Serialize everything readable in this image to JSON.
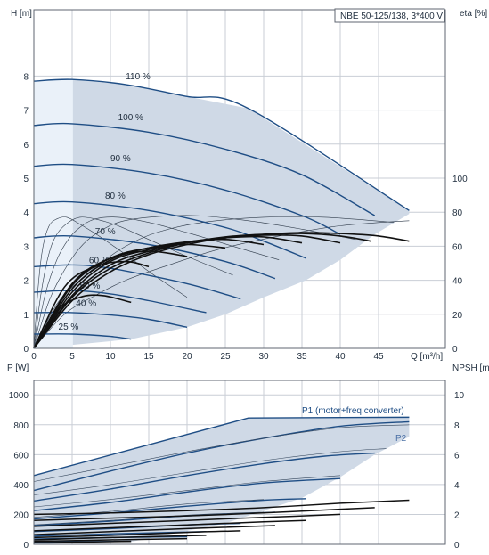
{
  "pump_label": "NBE 50-125/138, 3*400 V",
  "p1_label": "P1 (motor+freq.converter)",
  "p2_label": "P2",
  "chart_data": [
    {
      "type": "line",
      "title": "",
      "xlabel": "Q [m³/h]",
      "ylabel": "H\n[m]",
      "ylabel_right": "eta\n[%]",
      "xlim": [
        0,
        50
      ],
      "ylim": [
        0,
        9
      ],
      "ylim_right": [
        0,
        180
      ],
      "x_ticks": [
        "0",
        "5",
        "10",
        "15",
        "20",
        "25",
        "30",
        "35",
        "40",
        "45"
      ],
      "y_ticks": [
        "0",
        "1",
        "2",
        "3",
        "4",
        "5",
        "6",
        "7",
        "8"
      ],
      "y_right_ticks": [
        "0",
        "20",
        "40",
        "60",
        "80",
        "100"
      ],
      "grid": true,
      "series": [
        {
          "name": "110 %",
          "x": [
            0,
            5,
            12,
            20,
            28,
            49
          ],
          "y": [
            7.85,
            7.9,
            7.75,
            7.4,
            7.05,
            4.05
          ]
        },
        {
          "name": "100 %",
          "x": [
            0,
            5,
            15,
            25,
            35,
            44.5
          ],
          "y": [
            6.55,
            6.6,
            6.35,
            5.85,
            5.1,
            3.9
          ]
        },
        {
          "name": "90 %",
          "x": [
            0,
            5,
            15,
            25,
            35,
            40
          ],
          "y": [
            5.35,
            5.4,
            5.15,
            4.65,
            3.9,
            3.35
          ]
        },
        {
          "name": "80 %",
          "x": [
            0,
            5,
            15,
            25,
            30,
            35.5
          ],
          "y": [
            4.25,
            4.3,
            4.05,
            3.55,
            3.15,
            2.65
          ]
        },
        {
          "name": "70 %",
          "x": [
            0,
            5,
            15,
            25,
            31.5
          ],
          "y": [
            3.25,
            3.3,
            3.05,
            2.55,
            2.05
          ]
        },
        {
          "name": "60 %",
          "x": [
            0,
            5,
            10,
            20,
            27
          ],
          "y": [
            2.4,
            2.45,
            2.35,
            1.9,
            1.45
          ]
        },
        {
          "name": "50 %",
          "x": [
            0,
            5,
            10,
            15,
            22.5
          ],
          "y": [
            1.65,
            1.7,
            1.6,
            1.4,
            1.05
          ]
        },
        {
          "name": "40 %",
          "x": [
            0,
            5,
            10,
            15,
            20
          ],
          "y": [
            1.05,
            1.05,
            0.98,
            0.85,
            0.62
          ]
        },
        {
          "name": "25 %",
          "x": [
            0,
            5,
            10,
            12.7
          ],
          "y": [
            0.42,
            0.42,
            0.35,
            0.27
          ]
        }
      ],
      "eta_series": [
        {
          "x": [
            0,
            5,
            10,
            15,
            20,
            25,
            30,
            35,
            40,
            45,
            49
          ],
          "y": [
            0,
            28,
            45,
            55,
            61,
            65,
            67,
            68,
            67.5,
            66,
            63
          ]
        },
        {
          "x": [
            0,
            5,
            10,
            15,
            20,
            25,
            30,
            35,
            40,
            44
          ],
          "y": [
            0,
            30,
            47,
            56,
            62,
            65.5,
            67,
            67.5,
            66,
            63
          ]
        },
        {
          "x": [
            0,
            5,
            10,
            15,
            20,
            25,
            30,
            35,
            40
          ],
          "y": [
            0,
            31,
            49,
            57,
            62,
            65,
            66.5,
            66,
            62
          ]
        },
        {
          "x": [
            0,
            5,
            10,
            15,
            20,
            25,
            30,
            35
          ],
          "y": [
            0,
            33,
            51,
            58,
            62.5,
            65,
            65.5,
            62
          ]
        },
        {
          "x": [
            0,
            5,
            10,
            15,
            20,
            25,
            30
          ],
          "y": [
            0,
            35,
            52,
            59,
            62.5,
            64,
            61
          ]
        },
        {
          "x": [
            0,
            5,
            10,
            15,
            20,
            25
          ],
          "y": [
            0,
            37,
            53,
            59,
            61,
            59
          ]
        },
        {
          "x": [
            0,
            5,
            10,
            15,
            20
          ],
          "y": [
            0,
            38,
            53,
            57,
            54
          ]
        },
        {
          "x": [
            0,
            4,
            8,
            12,
            15
          ],
          "y": [
            0,
            36,
            48,
            51,
            48
          ]
        },
        {
          "x": [
            0,
            3,
            6,
            9,
            12.7
          ],
          "y": [
            0,
            22,
            30,
            31,
            27
          ]
        }
      ],
      "iso_series": [
        {
          "x": [
            0,
            4,
            8,
            12,
            17,
            24,
            32,
            40,
            49
          ],
          "y": [
            0,
            1.0,
            1.55,
            2.0,
            2.4,
            2.9,
            3.3,
            3.6,
            3.75
          ]
        },
        {
          "x": [
            0,
            3,
            6,
            9,
            12,
            16,
            22,
            30,
            38,
            47
          ],
          "y": [
            0,
            1.3,
            2.0,
            2.55,
            3.0,
            3.4,
            3.7,
            3.85,
            3.85,
            3.7
          ]
        },
        {
          "x": [
            0,
            2,
            4,
            6,
            8,
            11,
            15,
            21,
            28,
            35,
            42
          ],
          "y": [
            0,
            1.4,
            2.3,
            2.95,
            3.35,
            3.7,
            3.85,
            3.9,
            3.75,
            3.5,
            3.2
          ]
        },
        {
          "x": [
            0,
            1.5,
            3,
            4.5,
            6,
            8,
            11,
            15,
            20,
            26,
            32
          ],
          "y": [
            0,
            1.6,
            2.6,
            3.2,
            3.55,
            3.8,
            3.85,
            3.7,
            3.4,
            3.0,
            2.6
          ]
        },
        {
          "x": [
            0,
            1,
            2,
            3,
            4.5,
            6,
            8,
            11,
            15,
            20,
            26
          ],
          "y": [
            0,
            1.7,
            2.8,
            3.35,
            3.7,
            3.85,
            3.8,
            3.6,
            3.2,
            2.7,
            2.15
          ]
        },
        {
          "x": [
            0,
            0.6,
            1.2,
            2,
            3,
            4.3,
            6,
            8.5,
            12,
            16,
            20
          ],
          "y": [
            0,
            1.9,
            3.0,
            3.6,
            3.8,
            3.85,
            3.65,
            3.3,
            2.75,
            2.1,
            1.5
          ]
        }
      ]
    },
    {
      "type": "line",
      "title": "",
      "xlabel": "",
      "ylabel": "P\n[W]",
      "ylabel_right": "NPSH\n[m]",
      "xlim": [
        0,
        50
      ],
      "ylim": [
        0,
        1000
      ],
      "ylim_right": [
        0,
        10
      ],
      "y_ticks": [
        "0",
        "200",
        "400",
        "600",
        "800",
        "1000"
      ],
      "y_right_ticks": [
        "0",
        "2",
        "4",
        "6",
        "8",
        "10"
      ],
      "grid": true,
      "p1_series": [
        {
          "x": [
            0,
            28,
            49
          ],
          "y": [
            460,
            845,
            850
          ]
        },
        {
          "x": [
            0,
            10,
            20,
            30,
            40,
            49
          ],
          "y": [
            360,
            490,
            610,
            710,
            790,
            820
          ]
        },
        {
          "x": [
            0,
            10,
            20,
            30,
            38,
            44.5
          ],
          "y": [
            290,
            370,
            460,
            540,
            590,
            610
          ]
        },
        {
          "x": [
            0,
            10,
            20,
            30,
            40
          ],
          "y": [
            225,
            280,
            350,
            410,
            440
          ]
        },
        {
          "x": [
            0,
            10,
            20,
            30,
            35.5
          ],
          "y": [
            170,
            210,
            255,
            295,
            305
          ]
        },
        {
          "x": [
            0,
            10,
            20,
            31.5
          ],
          "y": [
            125,
            155,
            190,
            215
          ]
        },
        {
          "x": [
            0,
            10,
            20,
            27
          ],
          "y": [
            85,
            105,
            130,
            140
          ]
        },
        {
          "x": [
            0,
            10,
            22.5
          ],
          "y": [
            55,
            70,
            85
          ]
        },
        {
          "x": [
            0,
            10,
            20
          ],
          "y": [
            35,
            45,
            50
          ]
        },
        {
          "x": [
            0,
            6,
            12.7
          ],
          "y": [
            15,
            18,
            20
          ]
        }
      ],
      "p2_series": [
        {
          "x": [
            0,
            10,
            20,
            30,
            40,
            49
          ],
          "y": [
            420,
            520,
            620,
            710,
            780,
            800
          ]
        },
        {
          "x": [
            0,
            10,
            20,
            30,
            40,
            46
          ],
          "y": [
            330,
            400,
            480,
            560,
            620,
            640
          ]
        },
        {
          "x": [
            0,
            10,
            20,
            30,
            40
          ],
          "y": [
            250,
            300,
            360,
            420,
            460
          ]
        },
        {
          "x": [
            0,
            10,
            20,
            30
          ],
          "y": [
            180,
            220,
            270,
            300
          ]
        },
        {
          "x": [
            0,
            10,
            20,
            30
          ],
          "y": [
            130,
            160,
            195,
            215
          ]
        },
        {
          "x": [
            0,
            10,
            20
          ],
          "y": [
            90,
            110,
            130
          ]
        }
      ],
      "npsh_series": [
        {
          "x": [
            0,
            10,
            20,
            30,
            40,
            49
          ],
          "y": [
            2.0,
            2.1,
            2.25,
            2.45,
            2.75,
            2.95
          ]
        },
        {
          "x": [
            0,
            10,
            20,
            30,
            40,
            44.5
          ],
          "y": [
            1.6,
            1.75,
            1.9,
            2.1,
            2.35,
            2.45
          ]
        },
        {
          "x": [
            0,
            10,
            20,
            30,
            40
          ],
          "y": [
            1.2,
            1.4,
            1.6,
            1.8,
            2.0
          ]
        },
        {
          "x": [
            0,
            10,
            20,
            30,
            35.5
          ],
          "y": [
            0.9,
            1.1,
            1.3,
            1.5,
            1.6
          ]
        },
        {
          "x": [
            0,
            10,
            20,
            31.5
          ],
          "y": [
            0.65,
            0.85,
            1.05,
            1.25
          ]
        },
        {
          "x": [
            0,
            10,
            20,
            27
          ],
          "y": [
            0.45,
            0.6,
            0.8,
            0.9
          ]
        },
        {
          "x": [
            0,
            10,
            22.5
          ],
          "y": [
            0.3,
            0.45,
            0.6
          ]
        },
        {
          "x": [
            0,
            10,
            20
          ],
          "y": [
            0.2,
            0.3,
            0.38
          ]
        },
        {
          "x": [
            0,
            6,
            12.7
          ],
          "y": [
            0.1,
            0.15,
            0.2
          ]
        }
      ]
    }
  ]
}
